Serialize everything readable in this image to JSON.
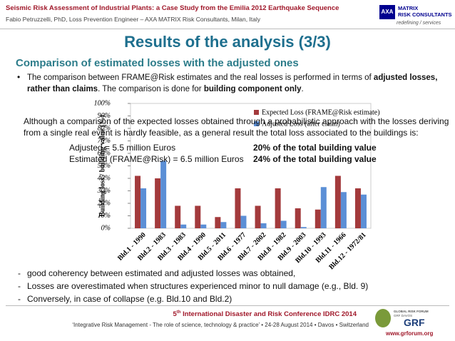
{
  "header": {
    "line1": "Seismic Risk Assessment of Industrial Plants: a Case Study from the Emilia 2012 Earthquake Sequence",
    "line2": "Fabio Petruzzelli, PhD, Loss Prevention Engineer – AXA MATRIX Risk Consultants, Milan, Italy",
    "logo": {
      "brand": "AXA",
      "name1": "MATRIX",
      "name2": "RISK CONSULTANTS",
      "tagline": "redefining / services"
    }
  },
  "title": "Results of the analysis (3/3)",
  "subtitle": "Comparison of estimated losses with the adjusted ones",
  "intro": [
    "The comparison between FRAME@Risk estimates and the real losses is performed in terms of ",
    "adjusted losses, rather than claims",
    ". The comparison is done for ",
    "building component only",
    "."
  ],
  "chart_data": {
    "type": "bar",
    "y_label": "Building loss / building value (%)",
    "categories": [
      "Bld.1 - 1990",
      "Bld.2 - 1983",
      "Bld.3 - 1983",
      "Bld.4 - 1990",
      "Bld.5 - 2011",
      "Bld.6 - 1977",
      "Bld.7 - 2002",
      "Bld.8 - 1982",
      "Bld.9 - 2003",
      "Bld.10 - 1993",
      "Bld.11 - 1966",
      "Bld.12 - 1972/81"
    ],
    "series": [
      {
        "name": "Expected Loss (FRAME@Risk estimate)",
        "color": "#a33a3c",
        "values": [
          42,
          40,
          18,
          18,
          9,
          32,
          18,
          32,
          16,
          15,
          42,
          32
        ]
      },
      {
        "name": "Adjusted Loss (after claim)",
        "color": "#5b8fd6",
        "values": [
          32,
          54,
          3,
          3,
          5,
          10,
          4,
          6,
          1,
          33,
          29,
          27
        ]
      }
    ],
    "ylim": [
      0,
      100
    ],
    "yticks": [
      {
        "value": 0,
        "label": "0%"
      },
      {
        "value": 10,
        "label": "10%"
      },
      {
        "value": 20,
        "label": "20%"
      },
      {
        "value": 30,
        "label": "30%"
      },
      {
        "value": 40,
        "label": "40%"
      },
      {
        "value": 50,
        "label": "50%"
      },
      {
        "value": 60,
        "label": "60%"
      },
      {
        "value": 70,
        "label": "70%"
      },
      {
        "value": 80,
        "label": "80%"
      },
      {
        "value": 90,
        "label": "90%"
      },
      {
        "value": 100,
        "label": "100%"
      }
    ],
    "legend": "top-right",
    "grid": false
  },
  "overlay": {
    "paragraph": "Although a comparison of the expected losses obtained through a probabilistic approach with the losses deriving from a single real event is hardly feasible, as a general result the total loss associated to the buildings is:",
    "rows": [
      [
        "Adjusted = 5.5 million Euros",
        "20% of the total building value"
      ],
      [
        "Estimated (FRAME@Risk) = 6.5 million Euros",
        "24% of the total building value"
      ]
    ]
  },
  "conclusions": [
    "good coherency between estimated and adjusted losses was obtained,",
    "Losses are overestimated when structures experienced minor to null damage (e.g., Bld. 9)",
    "Conversely, in case of collapse (e.g. Bld.10 and Bld.2)"
  ],
  "footer": {
    "ordinal": "5",
    "suffix": "th",
    "conference": " International Disaster and Risk Conference IDRC 2014",
    "line2": "‘Integrative Risk Management - The role of science, technology & practice’ • 24-28 August 2014 • Davos • Switzerland",
    "logo": "GRF",
    "logo_text": [
      "GLOBAL RISK FORUM",
      "GRF DAVOS"
    ],
    "url": "www.grforum.org"
  }
}
